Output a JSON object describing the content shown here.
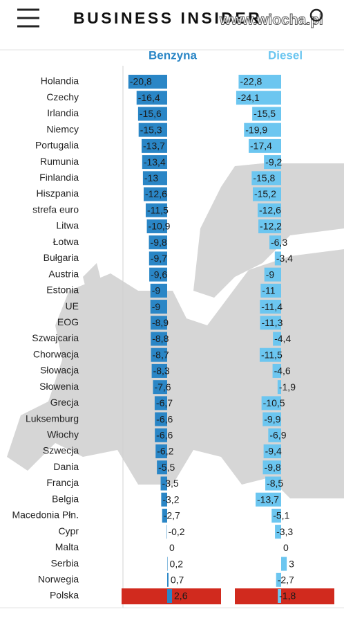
{
  "header": {
    "title": "BUSINESS INSIDER",
    "watermark": "www.wiocha.pl"
  },
  "chart_data": {
    "type": "bar",
    "orientation": "horizontal",
    "categories": [
      "Holandia",
      "Czechy",
      "Irlandia",
      "Niemcy",
      "Portugalia",
      "Rumunia",
      "Finlandia",
      "Hiszpania",
      "strefa euro",
      "Litwa",
      "Łotwa",
      "Bułgaria",
      "Austria",
      "Estonia",
      "UE",
      "EOG",
      "Szwajcaria",
      "Chorwacja",
      "Słowacja",
      "Słowenia",
      "Grecja",
      "Luksemburg",
      "Włochy",
      "Szwecja",
      "Dania",
      "Francja",
      "Belgia",
      "Macedonia Płn.",
      "Cypr",
      "Malta",
      "Serbia",
      "Norwegia",
      "Polska"
    ],
    "series": [
      {
        "name": "Benzyna",
        "color": "#2a86c6",
        "values": [
          -20.8,
          -16.4,
          -15.6,
          -15.3,
          -13.7,
          -13.4,
          -13,
          -12.6,
          -11.5,
          -10.9,
          -9.8,
          -9.7,
          -9.6,
          -9,
          -9,
          -8.9,
          -8.8,
          -8.7,
          -8.3,
          -7.6,
          -6.7,
          -6.6,
          -6.6,
          -6.2,
          -5.5,
          -3.5,
          -3.2,
          -2.7,
          -0.2,
          0,
          0.2,
          0.7,
          2.6
        ],
        "value_labels": [
          "-20,8",
          "-16,4",
          "-15,6",
          "-15,3",
          "-13,7",
          "-13,4",
          "-13",
          "-12,6",
          "-11,5",
          "-10,9",
          "-9,8",
          "-9,7",
          "-9,6",
          "-9",
          "-9",
          "-8,9",
          "-8,8",
          "-8,7",
          "-8,3",
          "-7,6",
          "-6,7",
          "-6,6",
          "-6,6",
          "-6,2",
          "-5,5",
          "-3,5",
          "-3,2",
          "-2,7",
          "-0,2",
          "0",
          "0,2",
          "0,7",
          "2,6"
        ]
      },
      {
        "name": "Diesel",
        "color": "#6cc6f0",
        "values": [
          -22.8,
          -24.1,
          -15.5,
          -19.9,
          -17.4,
          -9.2,
          -15.8,
          -15.2,
          -12.6,
          -12.2,
          -6.3,
          -3.4,
          -9,
          -11,
          -11.4,
          -11.3,
          -4.4,
          -11.5,
          -4.6,
          -1.9,
          -10.5,
          -9.9,
          -6.9,
          -9.4,
          -9.8,
          -8.5,
          -13.7,
          -5.1,
          -3.3,
          0,
          3,
          -2.7,
          -1.8
        ],
        "value_labels": [
          "-22,8",
          "-24,1",
          "-15,5",
          "-19,9",
          "-17,4",
          "-9,2",
          "-15,8",
          "-15,2",
          "-12,6",
          "-12,2",
          "-6,3",
          "-3,4",
          "-9",
          "-11",
          "-11,4",
          "-11,3",
          "-4,4",
          "-11,5",
          "-4,6",
          "-1,9",
          "-10,5",
          "-9,9",
          "-6,9",
          "-9,4",
          "-9,8",
          "-8,5",
          "-13,7",
          "-5,1",
          "-3,3",
          "0",
          "3",
          "-2,7",
          "-1,8"
        ]
      }
    ]
  }
}
